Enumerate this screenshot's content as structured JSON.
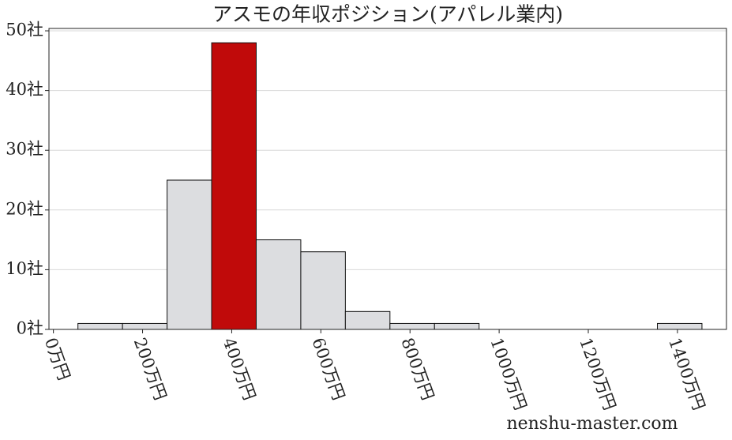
{
  "chart_data": {
    "type": "histogram",
    "title": "アスモの年収ポジション(アパレル業内)",
    "bins": [
      55,
      155,
      255,
      355,
      455,
      555,
      655,
      755,
      855,
      955,
      1055,
      1155,
      1255,
      1355,
      1455
    ],
    "values": [
      1,
      1,
      25,
      48,
      15,
      13,
      3,
      1,
      1,
      0,
      0,
      0,
      0,
      1
    ],
    "bar_colors": [
      "#dcdde0",
      "#dcdde0",
      "#dcdde0",
      "#c00a0a",
      "#dcdde0",
      "#dcdde0",
      "#dcdde0",
      "#dcdde0",
      "#dcdde0",
      "#dcdde0",
      "#dcdde0",
      "#dcdde0",
      "#dcdde0",
      "#dcdde0"
    ],
    "xlim": [
      -10,
      1510
    ],
    "xticks": [
      {
        "value": 0,
        "label": "0万円"
      },
      {
        "value": 200,
        "label": "200万円"
      },
      {
        "value": 400,
        "label": "400万円"
      },
      {
        "value": 600,
        "label": "600万円"
      },
      {
        "value": 800,
        "label": "800万円"
      },
      {
        "value": 1000,
        "label": "1000万円"
      },
      {
        "value": 1200,
        "label": "1200万円"
      },
      {
        "value": 1400,
        "label": "1400万円"
      }
    ],
    "ylim": [
      0,
      50.4
    ],
    "yticks": [
      {
        "value": 0,
        "label": "0社"
      },
      {
        "value": 10,
        "label": "10社"
      },
      {
        "value": 20,
        "label": "20社"
      },
      {
        "value": 30,
        "label": "30社"
      },
      {
        "value": 40,
        "label": "40社"
      },
      {
        "value": 50,
        "label": "50社"
      }
    ],
    "grid": true,
    "watermark": "nenshu-master.com"
  }
}
